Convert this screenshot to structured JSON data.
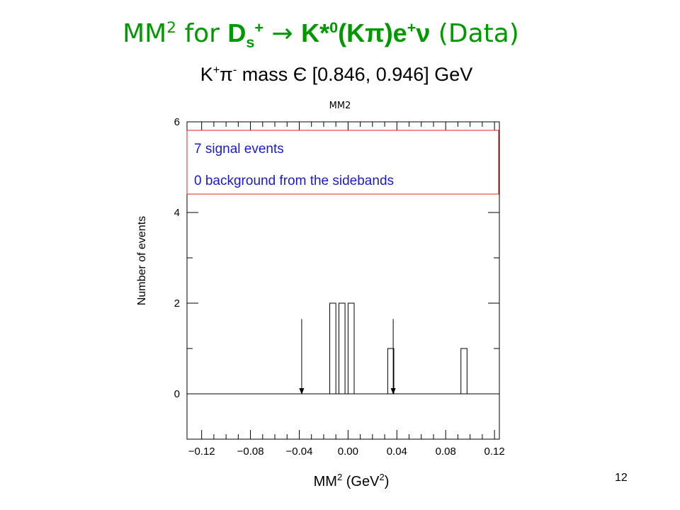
{
  "slide": {
    "title_parts": {
      "mm": "MM",
      "mm_sup": "2",
      "for": " for ",
      "ds": "D",
      "ds_sub": "s",
      "ds_sup": "+",
      "arrow": " → ",
      "kstar": "K*",
      "kstar_sup": "0",
      "kpi": "(K",
      "pi": "π",
      "close": ")e",
      "e_sup": "+",
      "nu": "ν",
      "data": " (Data)"
    },
    "subtitle_parts": {
      "k": "K",
      "k_sup": "+",
      "pi": "π",
      "pi_sup": "-",
      "rest": " mass Є [0.846, 0.946] GeV"
    },
    "page_number": "12"
  },
  "chart_data": {
    "type": "histogram",
    "histogram_label": "MM2",
    "xlabel_main": "MM",
    "xlabel_sup": "2",
    "xlabel_unit": " (GeV",
    "xlabel_unit_sup": "2",
    "xlabel_close": ")",
    "ylabel": "Number of events",
    "xlim": [
      -0.132,
      0.124
    ],
    "ylim": [
      -1,
      6
    ],
    "x_ticks": [
      -0.12,
      -0.08,
      -0.04,
      0.0,
      0.04,
      0.08,
      0.12
    ],
    "x_tick_labels": [
      "−0.12",
      "−0.08",
      "−0.04",
      "0.00",
      "0.04",
      "0.08",
      "0.12"
    ],
    "y_ticks": [
      0,
      2,
      4,
      6
    ],
    "y_tick_labels": [
      "0",
      "2",
      "4",
      "6"
    ],
    "bins": [
      {
        "x0": -0.015,
        "x1": -0.01,
        "count": 2
      },
      {
        "x0": -0.0075,
        "x1": -0.0025,
        "count": 2
      },
      {
        "x0": 0.0,
        "x1": 0.005,
        "count": 2
      },
      {
        "x0": 0.0325,
        "x1": 0.0375,
        "count": 1
      },
      {
        "x0": 0.0925,
        "x1": 0.0975,
        "count": 1
      }
    ],
    "signal_window": [
      -0.038,
      0.037
    ],
    "annotations": {
      "signal": "7 signal events",
      "background": "0 background from the sidebands"
    },
    "colors": {
      "title": "#009900",
      "annotation_text": "#1a1acc",
      "annotation_border": "#e02020"
    }
  }
}
